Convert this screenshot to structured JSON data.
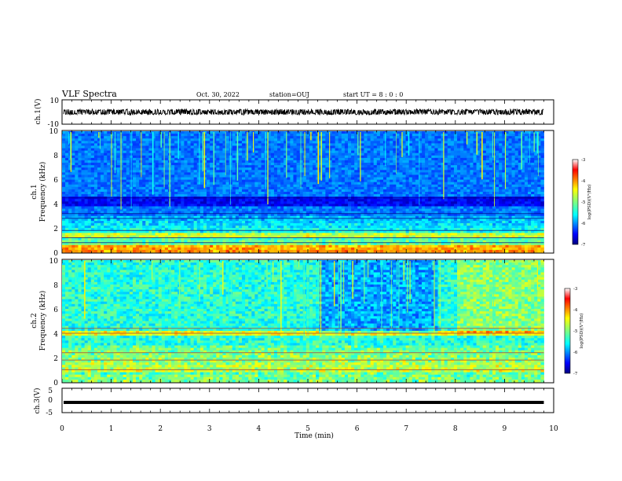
{
  "header": {
    "title": "VLF Spectra",
    "date": "Oct. 30, 2022",
    "station": "station=OUJ",
    "start_ut": "start  UT =   8 : 0  : 0"
  },
  "chart_data": {
    "type": "heatmap",
    "xlabel": "Time  (min)",
    "xlim": [
      0,
      10
    ],
    "x_ticks": [
      "0",
      "1",
      "2",
      "3",
      "4",
      "5",
      "6",
      "7",
      "8",
      "9",
      "10"
    ],
    "panels": [
      {
        "id": "ch1-waveform",
        "type": "line",
        "ylabel": "ch.1(V)",
        "ylim": [
          -10,
          10
        ],
        "y_ticks": [
          "10",
          "-10"
        ],
        "amplitude_approx": 1.5,
        "data_end_min": 9.8
      },
      {
        "id": "ch1-spectrogram",
        "type": "heatmap",
        "ylabel_top": "ch.1",
        "ylabel": "Frequency  (kHz)",
        "ylim": [
          0,
          10
        ],
        "y_ticks": [
          "0",
          "2",
          "4",
          "6",
          "8",
          "10"
        ],
        "data_end_min": 9.8,
        "colorbar": {
          "label": "log(PSD)(V²/Hz)",
          "range": [
            -7,
            -3
          ],
          "ticks": [
            "-3",
            "-4",
            "-5",
            "-6",
            "-7"
          ]
        }
      },
      {
        "id": "ch2-spectrogram",
        "type": "heatmap",
        "ylabel_top": "ch.2",
        "ylabel": "Frequency  (kHz)",
        "ylim": [
          0,
          10
        ],
        "y_ticks": [
          "0",
          "2",
          "4",
          "6",
          "8",
          "10"
        ],
        "data_end_min": 9.8,
        "colorbar": {
          "label": "log(PSD)(V²/Hz)",
          "range": [
            -7,
            -3
          ],
          "ticks": [
            "-3",
            "-4",
            "-5",
            "-6",
            "-7"
          ]
        }
      },
      {
        "id": "ch3-waveform",
        "type": "line",
        "ylabel": "ch.3(V)",
        "ylim": [
          -5,
          5
        ],
        "y_ticks": [
          "5",
          "0",
          "-5"
        ],
        "constant_value": -0.8,
        "data_end_min": 9.8
      }
    ]
  },
  "colors": {
    "jet": [
      "#00007f",
      "#0000ff",
      "#007fff",
      "#00ffff",
      "#7fff7f",
      "#ffff00",
      "#ff7f00",
      "#ff0000",
      "#7f0000"
    ],
    "axis": "#000000",
    "background": "#ffffff"
  }
}
